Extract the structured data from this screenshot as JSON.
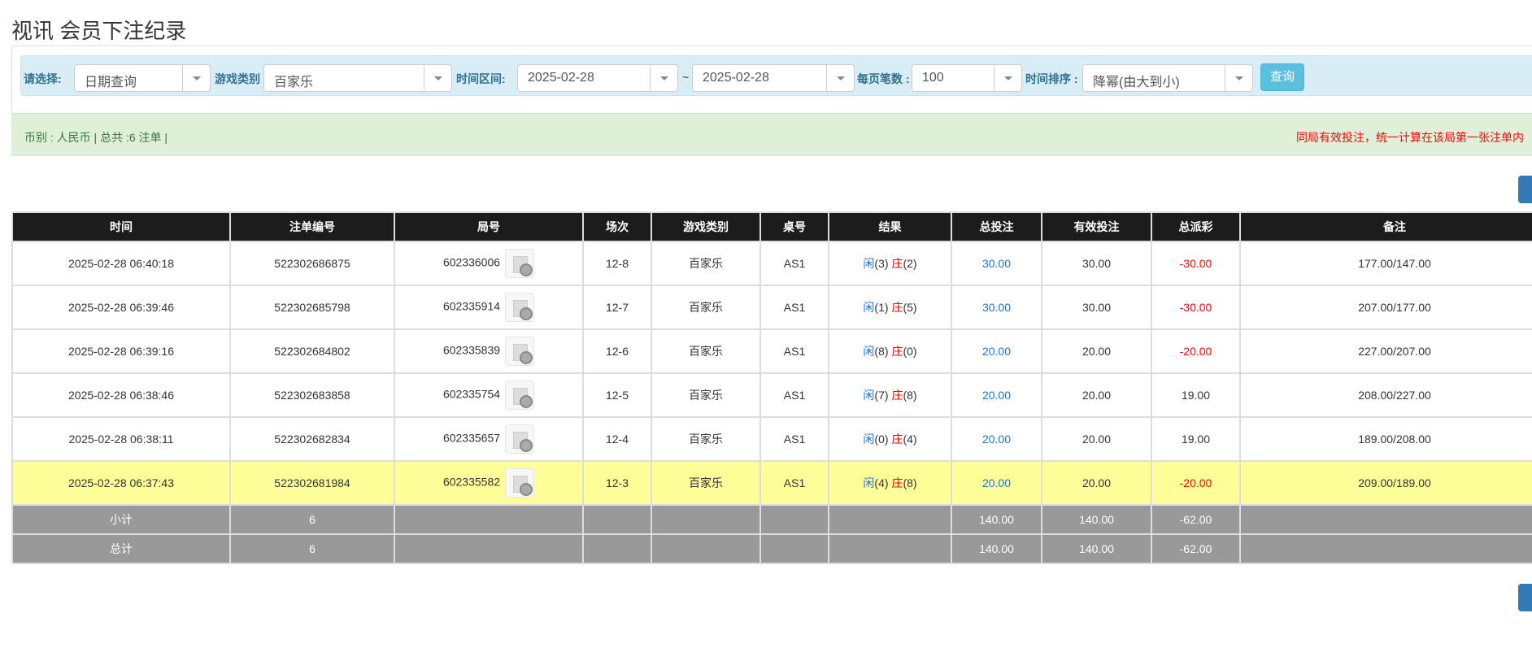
{
  "title": "视讯 会员下注纪录",
  "filter": {
    "select_label": "请选择:",
    "select_value": "日期查询",
    "game_label": "游戏类别",
    "game_value": "百家乐",
    "range_label": "时间区间:",
    "date_from": "2025-02-28",
    "tilde": "~",
    "date_to": "2025-02-28",
    "per_page_label": "每页笔数 :",
    "per_page_value": "100",
    "sort_label": "时间排序 :",
    "sort_value": "降幂(由大到小)",
    "query_button": "查询"
  },
  "summary": {
    "left": "币别 : 人民币 | 总共 :6 注单 |",
    "right": "同局有效投注，统一计算在该局第一张注单内"
  },
  "table": {
    "headers": [
      "时间",
      "注单编号",
      "局号",
      "场次",
      "游戏类别",
      "桌号",
      "结果",
      "总投注",
      "有效投注",
      "总派彩",
      "备注"
    ],
    "rows": [
      {
        "time": "2025-02-28 06:40:18",
        "bet_id": "522302686875",
        "round": "602336006",
        "session": "12-8",
        "game": "百家乐",
        "table": "AS1",
        "player": "闲",
        "player_pts": "(3)",
        "banker": "庄",
        "banker_pts": "(2)",
        "total": "30.00",
        "valid": "30.00",
        "payout": "-30.00",
        "payout_neg": true,
        "note": "177.00/147.00"
      },
      {
        "time": "2025-02-28 06:39:46",
        "bet_id": "522302685798",
        "round": "602335914",
        "session": "12-7",
        "game": "百家乐",
        "table": "AS1",
        "player": "闲",
        "player_pts": "(1)",
        "banker": "庄",
        "banker_pts": "(5)",
        "total": "30.00",
        "valid": "30.00",
        "payout": "-30.00",
        "payout_neg": true,
        "note": "207.00/177.00"
      },
      {
        "time": "2025-02-28 06:39:16",
        "bet_id": "522302684802",
        "round": "602335839",
        "session": "12-6",
        "game": "百家乐",
        "table": "AS1",
        "player": "闲",
        "player_pts": "(8)",
        "banker": "庄",
        "banker_pts": "(0)",
        "total": "20.00",
        "valid": "20.00",
        "payout": "-20.00",
        "payout_neg": true,
        "note": "227.00/207.00"
      },
      {
        "time": "2025-02-28 06:38:46",
        "bet_id": "522302683858",
        "round": "602335754",
        "session": "12-5",
        "game": "百家乐",
        "table": "AS1",
        "player": "闲",
        "player_pts": "(7)",
        "banker": "庄",
        "banker_pts": "(8)",
        "total": "20.00",
        "valid": "20.00",
        "payout": "19.00",
        "payout_neg": false,
        "note": "208.00/227.00"
      },
      {
        "time": "2025-02-28 06:38:11",
        "bet_id": "522302682834",
        "round": "602335657",
        "session": "12-4",
        "game": "百家乐",
        "table": "AS1",
        "player": "闲",
        "player_pts": "(0)",
        "banker": "庄",
        "banker_pts": "(4)",
        "total": "20.00",
        "valid": "20.00",
        "payout": "19.00",
        "payout_neg": false,
        "note": "189.00/208.00"
      },
      {
        "time": "2025-02-28 06:37:43",
        "bet_id": "522302681984",
        "round": "602335582",
        "session": "12-3",
        "game": "百家乐",
        "table": "AS1",
        "player": "闲",
        "player_pts": "(4)",
        "banker": "庄",
        "banker_pts": "(8)",
        "total": "20.00",
        "valid": "20.00",
        "payout": "-20.00",
        "payout_neg": true,
        "note": "209.00/189.00",
        "highlight": true
      }
    ],
    "subtotal": {
      "label": "小计",
      "count": "6",
      "total": "140.00",
      "valid": "140.00",
      "payout": "-62.00"
    },
    "grandtotal": {
      "label": "总计",
      "count": "6",
      "total": "140.00",
      "valid": "140.00",
      "payout": "-62.00"
    }
  },
  "colors": {
    "header_bg": "#1c1c1c",
    "highlight_row": "#ffff99",
    "total_row": "#999999",
    "negative": "#ff0000",
    "blue": "#1a73e8"
  }
}
